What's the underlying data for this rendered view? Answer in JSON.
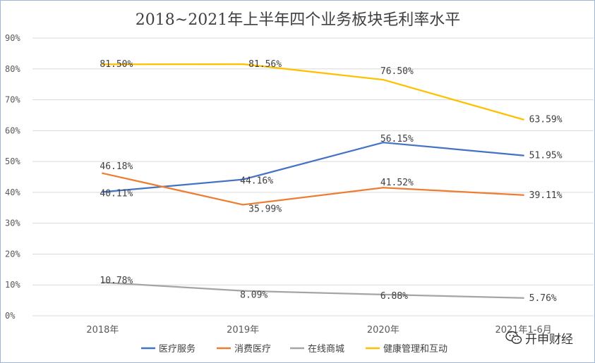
{
  "chart_data": {
    "type": "line",
    "title": "2018~2021年上半年四个业务板块毛利率水平",
    "categories": [
      "2018年",
      "2019年",
      "2020年",
      "2021年1-6月"
    ],
    "ylim": [
      0,
      90
    ],
    "yticks": [
      "0%",
      "10%",
      "20%",
      "30%",
      "40%",
      "50%",
      "60%",
      "70%",
      "80%",
      "90%"
    ],
    "grid": true,
    "legend": "bottom",
    "series": [
      {
        "name": "医疗服务",
        "color": "#4472c4",
        "values": [
          40.11,
          44.16,
          56.15,
          51.95
        ],
        "labels": [
          "40.11%",
          "44.16%",
          "56.15%",
          "51.95%"
        ]
      },
      {
        "name": "消费医疗",
        "color": "#ed7d31",
        "values": [
          46.18,
          35.99,
          41.52,
          39.11
        ],
        "labels": [
          "46.18%",
          "35.99%",
          "41.52%",
          "39.11%"
        ]
      },
      {
        "name": "在线商城",
        "color": "#a5a5a5",
        "values": [
          10.78,
          8.09,
          6.88,
          5.76
        ],
        "labels": [
          "10.78%",
          "8.09%",
          "6.88%",
          "5.76%"
        ]
      },
      {
        "name": "健康管理和互动",
        "color": "#ffc000",
        "values": [
          81.5,
          81.56,
          76.5,
          63.59
        ],
        "labels": [
          "81.50%",
          "81.56%",
          "76.50%",
          "63.59%"
        ]
      }
    ]
  },
  "watermark": {
    "text": "开申财经",
    "icon": "wechat-icon"
  }
}
